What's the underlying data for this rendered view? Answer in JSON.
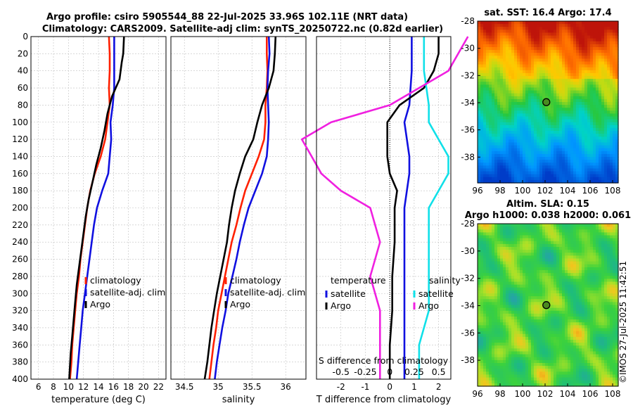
{
  "title": {
    "line1": "Argo profile: csiro 5905544_88 22-Jul-2025 33.96S 102.11E (NRT data)",
    "line2": "Climatology: CARS2009. Satellite-adj clim: synTS_20250722.nc (0.82d earlier)"
  },
  "copyright": "©IMOS 27-Jul-2025 11:42:51",
  "colors": {
    "climatology": "#ff2000",
    "satellite": "#1010e0",
    "argo": "#000000",
    "sal_satellite": "#10e0e8",
    "sal_argo": "#f020e0",
    "grid": "#c0c0c0",
    "marker": "#4a8a20"
  },
  "chart_data": [
    {
      "type": "line",
      "id": "temperature",
      "xlabel": "temperature (deg C)",
      "xlim": [
        5,
        23
      ],
      "ylim": [
        0,
        400
      ],
      "xticks": [
        "6",
        "8",
        "10",
        "12",
        "14",
        "16",
        "18",
        "20",
        "22"
      ],
      "yticks": [
        "0",
        "20",
        "40",
        "60",
        "80",
        "100",
        "120",
        "140",
        "160",
        "180",
        "200",
        "220",
        "240",
        "260",
        "280",
        "300",
        "320",
        "340",
        "360",
        "380",
        "400"
      ],
      "legend": [
        "climatology",
        "satellite-adj. clim",
        "Argo"
      ],
      "legend_position": "lower-right",
      "series": [
        {
          "name": "climatology",
          "points": [
            [
              15.4,
              0
            ],
            [
              15.5,
              20
            ],
            [
              15.5,
              40
            ],
            [
              15.4,
              60
            ],
            [
              15.5,
              80
            ],
            [
              15.2,
              100
            ],
            [
              14.9,
              120
            ],
            [
              14.3,
              140
            ],
            [
              13.5,
              160
            ],
            [
              12.9,
              180
            ],
            [
              12.5,
              200
            ],
            [
              12.2,
              220
            ],
            [
              11.9,
              240
            ],
            [
              11.6,
              260
            ],
            [
              11.4,
              280
            ],
            [
              11.1,
              300
            ],
            [
              10.9,
              320
            ],
            [
              10.7,
              340
            ],
            [
              10.5,
              360
            ],
            [
              10.4,
              380
            ],
            [
              10.2,
              400
            ]
          ]
        },
        {
          "name": "satellite-adj. clim",
          "points": [
            [
              16.1,
              0
            ],
            [
              16.1,
              20
            ],
            [
              16.1,
              40
            ],
            [
              16.1,
              60
            ],
            [
              15.9,
              80
            ],
            [
              15.6,
              100
            ],
            [
              15.7,
              120
            ],
            [
              15.5,
              140
            ],
            [
              15.3,
              160
            ],
            [
              14.5,
              180
            ],
            [
              13.8,
              200
            ],
            [
              13.4,
              220
            ],
            [
              13.1,
              240
            ],
            [
              12.8,
              260
            ],
            [
              12.5,
              280
            ],
            [
              12.2,
              300
            ],
            [
              11.9,
              320
            ],
            [
              11.7,
              340
            ],
            [
              11.5,
              360
            ],
            [
              11.3,
              380
            ],
            [
              11.1,
              400
            ]
          ]
        },
        {
          "name": "Argo",
          "points": [
            [
              17.4,
              0
            ],
            [
              17.3,
              20
            ],
            [
              17.1,
              30
            ],
            [
              16.8,
              50
            ],
            [
              15.8,
              70
            ],
            [
              15.2,
              90
            ],
            [
              14.8,
              110
            ],
            [
              14.3,
              130
            ],
            [
              13.7,
              150
            ],
            [
              13.2,
              170
            ],
            [
              12.7,
              190
            ],
            [
              12.3,
              210
            ],
            [
              12.0,
              230
            ],
            [
              11.7,
              250
            ],
            [
              11.4,
              270
            ],
            [
              11.1,
              290
            ],
            [
              10.9,
              310
            ],
            [
              10.7,
              330
            ],
            [
              10.5,
              350
            ],
            [
              10.3,
              370
            ],
            [
              10.1,
              400
            ]
          ]
        }
      ]
    },
    {
      "type": "line",
      "id": "salinity",
      "xlabel": "salinity",
      "xlim": [
        34.3,
        36.3
      ],
      "ylim": [
        0,
        400
      ],
      "xticks": [
        "34.5",
        "35",
        "35.5",
        "36"
      ],
      "legend": [
        "climatology",
        "satellite-adj. clim",
        "Argo"
      ],
      "legend_position": "lower-right",
      "series": [
        {
          "name": "climatology",
          "points": [
            [
              35.72,
              0
            ],
            [
              35.72,
              20
            ],
            [
              35.73,
              40
            ],
            [
              35.72,
              60
            ],
            [
              35.7,
              80
            ],
            [
              35.7,
              100
            ],
            [
              35.68,
              120
            ],
            [
              35.6,
              140
            ],
            [
              35.5,
              160
            ],
            [
              35.4,
              180
            ],
            [
              35.33,
              200
            ],
            [
              35.27,
              220
            ],
            [
              35.2,
              240
            ],
            [
              35.15,
              260
            ],
            [
              35.1,
              280
            ],
            [
              35.05,
              300
            ],
            [
              35.0,
              320
            ],
            [
              34.97,
              340
            ],
            [
              34.93,
              360
            ],
            [
              34.9,
              380
            ],
            [
              34.87,
              400
            ]
          ]
        },
        {
          "name": "satellite-adj. clim",
          "points": [
            [
              35.75,
              0
            ],
            [
              35.76,
              20
            ],
            [
              35.74,
              40
            ],
            [
              35.73,
              60
            ],
            [
              35.74,
              80
            ],
            [
              35.75,
              100
            ],
            [
              35.74,
              120
            ],
            [
              35.72,
              140
            ],
            [
              35.65,
              160
            ],
            [
              35.55,
              180
            ],
            [
              35.45,
              200
            ],
            [
              35.38,
              220
            ],
            [
              35.32,
              240
            ],
            [
              35.27,
              260
            ],
            [
              35.21,
              280
            ],
            [
              35.15,
              300
            ],
            [
              35.11,
              320
            ],
            [
              35.06,
              340
            ],
            [
              35.02,
              360
            ],
            [
              34.98,
              380
            ],
            [
              34.95,
              400
            ]
          ]
        },
        {
          "name": "Argo",
          "points": [
            [
              35.85,
              0
            ],
            [
              35.84,
              20
            ],
            [
              35.82,
              40
            ],
            [
              35.75,
              60
            ],
            [
              35.65,
              80
            ],
            [
              35.58,
              100
            ],
            [
              35.52,
              120
            ],
            [
              35.4,
              140
            ],
            [
              35.32,
              160
            ],
            [
              35.25,
              180
            ],
            [
              35.2,
              200
            ],
            [
              35.16,
              220
            ],
            [
              35.13,
              240
            ],
            [
              35.08,
              260
            ],
            [
              35.03,
              280
            ],
            [
              34.98,
              300
            ],
            [
              34.94,
              320
            ],
            [
              34.9,
              340
            ],
            [
              34.87,
              360
            ],
            [
              34.84,
              380
            ],
            [
              34.8,
              400
            ]
          ]
        }
      ]
    },
    {
      "type": "line",
      "id": "difference",
      "xlabel": "T difference from climatology",
      "xlabel_top": "S difference from climatology",
      "xlim": [
        -3,
        2.5
      ],
      "ylim": [
        0,
        400
      ],
      "xticks": [
        "-2",
        "-1",
        "0",
        "1",
        "2"
      ],
      "xticks_s": [
        "-0.5",
        "-0.25",
        "0",
        "0.25",
        "0.5"
      ],
      "legend_t": {
        "title": "temperature",
        "items": [
          "satellite",
          "Argo"
        ]
      },
      "legend_s": {
        "title": "salinity",
        "items": [
          "satellite",
          "Argo"
        ]
      },
      "series": [
        {
          "name": "T satellite",
          "points": [
            [
              0.9,
              0
            ],
            [
              0.9,
              40
            ],
            [
              0.8,
              80
            ],
            [
              0.6,
              100
            ],
            [
              0.7,
              120
            ],
            [
              0.8,
              140
            ],
            [
              0.8,
              160
            ],
            [
              0.7,
              180
            ],
            [
              0.6,
              200
            ],
            [
              0.6,
              240
            ],
            [
              0.6,
              280
            ],
            [
              0.6,
              320
            ],
            [
              0.6,
              360
            ],
            [
              0.6,
              400
            ]
          ]
        },
        {
          "name": "T Argo",
          "points": [
            [
              2.0,
              0
            ],
            [
              2.0,
              20
            ],
            [
              1.8,
              40
            ],
            [
              1.4,
              60
            ],
            [
              0.4,
              80
            ],
            [
              -0.1,
              100
            ],
            [
              -0.1,
              120
            ],
            [
              -0.1,
              140
            ],
            [
              0,
              160
            ],
            [
              0.3,
              180
            ],
            [
              0.2,
              200
            ],
            [
              0.2,
              240
            ],
            [
              0.1,
              280
            ],
            [
              0.1,
              320
            ],
            [
              0,
              360
            ],
            [
              0,
              400
            ]
          ]
        },
        {
          "name": "S satellite",
          "points": [
            [
              0.35,
              0
            ],
            [
              0.35,
              40
            ],
            [
              0.4,
              80
            ],
            [
              0.4,
              100
            ],
            [
              0.5,
              120
            ],
            [
              0.6,
              140
            ],
            [
              0.6,
              160
            ],
            [
              0.5,
              180
            ],
            [
              0.4,
              200
            ],
            [
              0.4,
              240
            ],
            [
              0.4,
              280
            ],
            [
              0.4,
              320
            ],
            [
              0.3,
              360
            ],
            [
              0.3,
              400
            ]
          ]
        },
        {
          "name": "S Argo",
          "points": [
            [
              0.8,
              0
            ],
            [
              0.6,
              40
            ],
            [
              0.0,
              80
            ],
            [
              -0.6,
              100
            ],
            [
              -0.9,
              120
            ],
            [
              -0.8,
              140
            ],
            [
              -0.7,
              160
            ],
            [
              -0.5,
              180
            ],
            [
              -0.2,
              200
            ],
            [
              -0.1,
              240
            ],
            [
              -0.2,
              280
            ],
            [
              -0.1,
              320
            ],
            [
              -0.1,
              360
            ],
            [
              -0.1,
              400
            ]
          ]
        }
      ]
    },
    {
      "type": "heatmap",
      "id": "sst_map",
      "title": "sat. SST: 16.4 Argo: 17.4",
      "xlim": [
        96,
        108.5
      ],
      "ylim": [
        -39.9,
        -28
      ],
      "xticks": [
        "96",
        "98",
        "100",
        "102",
        "104",
        "106",
        "108"
      ],
      "yticks": [
        "-28",
        "-30",
        "-32",
        "-34",
        "-36",
        "-38"
      ],
      "marker": [
        102.11,
        -33.96
      ]
    },
    {
      "type": "heatmap",
      "id": "sla_map",
      "title": "Altim. SLA: 0.15",
      "subtitle": "Argo h1000: 0.038 h2000: 0.061",
      "xlim": [
        96,
        108.5
      ],
      "ylim": [
        -39.9,
        -28
      ],
      "xticks": [
        "96",
        "98",
        "100",
        "102",
        "104",
        "106",
        "108"
      ],
      "yticks": [
        "-28",
        "-30",
        "-32",
        "-34",
        "-36",
        "-38"
      ],
      "marker": [
        102.11,
        -33.96
      ]
    }
  ]
}
